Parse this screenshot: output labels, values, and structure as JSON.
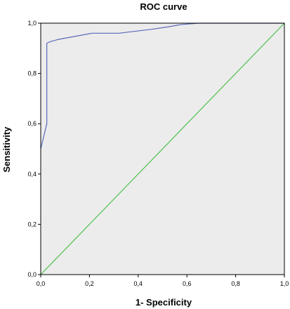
{
  "chart_data": {
    "type": "line",
    "title": "ROC curve",
    "xlabel": "1- Specificity",
    "ylabel": "Sensitivity",
    "xlim": [
      0,
      1
    ],
    "ylim": [
      0,
      1
    ],
    "x_ticks": [
      "0,0",
      "0,2",
      "0,4",
      "0,6",
      "0,8",
      "1,0"
    ],
    "y_ticks": [
      "0,0",
      "0,2",
      "0,4",
      "0,6",
      "0,8",
      "1,0"
    ],
    "grid": false,
    "legend": "none",
    "series": [
      {
        "x": [
          0.0,
          0.0,
          0.025,
          0.025,
          0.035,
          0.07,
          0.21,
          0.32,
          0.45,
          0.52,
          0.58,
          0.65,
          1.0
        ],
        "y": [
          0.5,
          0.5,
          0.6,
          0.92,
          0.925,
          0.935,
          0.96,
          0.96,
          0.975,
          0.985,
          0.995,
          1.0,
          1.0
        ],
        "color": "#5a6ab8"
      },
      {
        "x": [
          0.0,
          1.0
        ],
        "y": [
          0.0,
          1.0
        ],
        "color": "#4fc14f"
      }
    ],
    "plot_background": "#ececec"
  }
}
